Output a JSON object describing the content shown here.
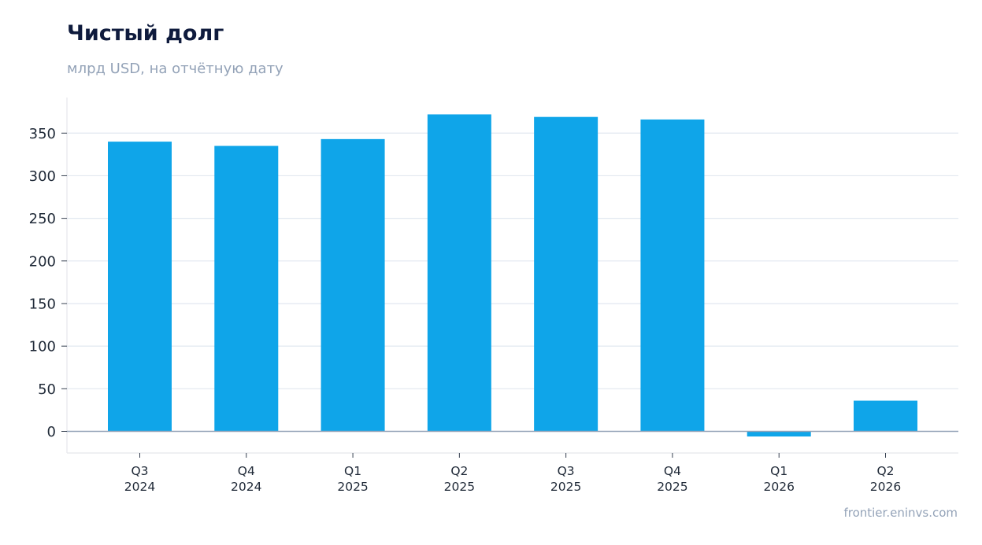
{
  "header": {
    "title": "Чистый долг",
    "subtitle": "млрд USD, на отчётную дату"
  },
  "footer": {
    "source": "frontier.eninvs.com"
  },
  "colors": {
    "bar": "#0fa5e9",
    "grid": "#e2e8f0",
    "zero_line": "#94a3b8",
    "frame": "#e5e7eb"
  },
  "chart_data": {
    "type": "bar",
    "title": "Чистый долг",
    "subtitle": "млрд USD, на отчётную дату",
    "categories": [
      [
        "Q3",
        "2024"
      ],
      [
        "Q4",
        "2024"
      ],
      [
        "Q1",
        "2025"
      ],
      [
        "Q2",
        "2025"
      ],
      [
        "Q3",
        "2025"
      ],
      [
        "Q4",
        "2025"
      ],
      [
        "Q1",
        "2026"
      ],
      [
        "Q2",
        "2026"
      ]
    ],
    "values": [
      340,
      335,
      343,
      372,
      369,
      366,
      -6,
      36
    ],
    "ylim": [
      -25,
      392
    ],
    "yticks": [
      0,
      50,
      100,
      150,
      200,
      250,
      300,
      350
    ],
    "grid": true,
    "legend": "none"
  }
}
